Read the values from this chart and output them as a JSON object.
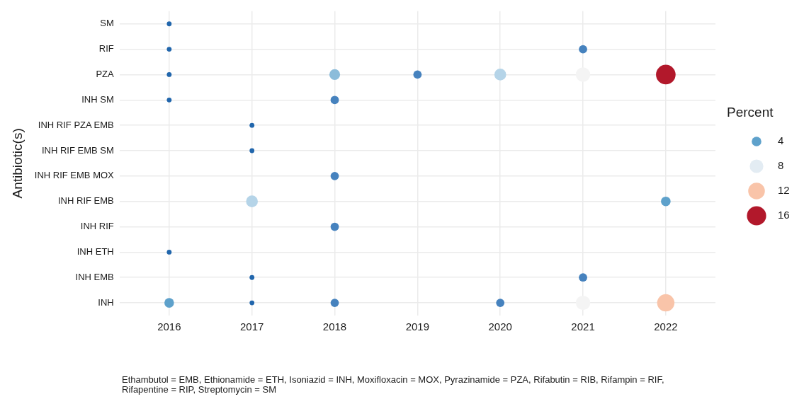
{
  "chart_data": {
    "type": "bubble",
    "orientation": "horizontal",
    "ylabel": "Antibiotic(s)",
    "legend_title": "Percent",
    "categories": [
      "SM",
      "RIF",
      "PZA",
      "INH SM",
      "INH RIF PZA EMB",
      "INH RIF EMB SM",
      "INH RIF EMB MOX",
      "INH RIF EMB",
      "INH RIF",
      "INH ETH",
      "INH EMB",
      "INH"
    ],
    "xlim": [
      2015.4,
      2022.6
    ],
    "xticks": [
      2016,
      2017,
      2018,
      2019,
      2020,
      2021,
      2022
    ],
    "series": [
      {
        "values": [
          2016,
          2016,
          2016,
          2016,
          null,
          null,
          null,
          null,
          null,
          2016,
          null,
          2016
        ],
        "sizes": [
          1,
          1,
          1,
          1,
          null,
          null,
          null,
          null,
          null,
          1,
          null,
          4
        ],
        "colors": [
          "#2166ac",
          "#2166ac",
          "#2166ac",
          "#2166ac",
          null,
          null,
          null,
          null,
          null,
          "#2166ac",
          null,
          "#5ea1cb"
        ]
      },
      {
        "values": [
          null,
          null,
          null,
          null,
          2017,
          2017,
          null,
          2017,
          null,
          null,
          2017,
          2017
        ],
        "sizes": [
          null,
          null,
          null,
          null,
          1,
          1,
          null,
          6,
          null,
          null,
          1,
          1
        ],
        "colors": [
          null,
          null,
          null,
          null,
          "#2166ac",
          "#2166ac",
          null,
          "#b5d4e8",
          null,
          null,
          "#2166ac",
          "#2166ac"
        ]
      },
      {
        "values": [
          null,
          null,
          2018,
          2018,
          null,
          null,
          2018,
          null,
          2018,
          null,
          null,
          2018
        ],
        "sizes": [
          null,
          null,
          5,
          3,
          null,
          null,
          3,
          null,
          3,
          null,
          null,
          3
        ],
        "colors": [
          null,
          null,
          "#8bbcda",
          "#4682be",
          null,
          null,
          "#4682be",
          null,
          "#4682be",
          null,
          null,
          "#4682be"
        ]
      },
      {
        "values": [
          null,
          null,
          2019,
          null,
          null,
          null,
          null,
          null,
          null,
          null,
          null,
          null
        ],
        "sizes": [
          null,
          null,
          3,
          null,
          null,
          null,
          null,
          null,
          null,
          null,
          null,
          null
        ],
        "colors": [
          null,
          null,
          "#4682be",
          null,
          null,
          null,
          null,
          null,
          null,
          null,
          null,
          null
        ]
      },
      {
        "values": [
          null,
          null,
          2020,
          null,
          null,
          null,
          null,
          null,
          null,
          null,
          null,
          2020
        ],
        "sizes": [
          null,
          null,
          6,
          null,
          null,
          null,
          null,
          null,
          null,
          null,
          null,
          3
        ],
        "colors": [
          null,
          null,
          "#b5d4e8",
          null,
          null,
          null,
          null,
          null,
          null,
          null,
          null,
          "#4682be"
        ]
      },
      {
        "values": [
          null,
          2021,
          2021,
          null,
          null,
          null,
          null,
          null,
          null,
          null,
          2021,
          2021
        ],
        "sizes": [
          null,
          3,
          9,
          null,
          null,
          null,
          null,
          null,
          null,
          null,
          3,
          9
        ],
        "colors": [
          null,
          "#4682be",
          "#f4f4f4",
          null,
          null,
          null,
          null,
          null,
          null,
          null,
          "#4682be",
          "#f4f4f4"
        ]
      },
      {
        "values": [
          null,
          null,
          2022,
          null,
          null,
          null,
          null,
          2022,
          null,
          null,
          null,
          2022
        ],
        "sizes": [
          null,
          null,
          16.5,
          null,
          null,
          null,
          null,
          4,
          null,
          null,
          null,
          13
        ],
        "colors": [
          null,
          null,
          "#b2182b",
          null,
          null,
          null,
          null,
          "#5ea1cb",
          null,
          null,
          null,
          "#f9c4a9"
        ]
      }
    ],
    "size_legend": [
      4,
      8,
      12,
      16
    ],
    "grid": true,
    "annotations": [
      "Ethambutol = EMB, Ethionamide = ETH, Isoniazid = INH, Moxifloxacin = MOX, Pyrazinamide = PZA, Rifabutin = RIB, Rifampin = RIF, Rifapentine = RIP, Streptomycin = SM"
    ]
  }
}
